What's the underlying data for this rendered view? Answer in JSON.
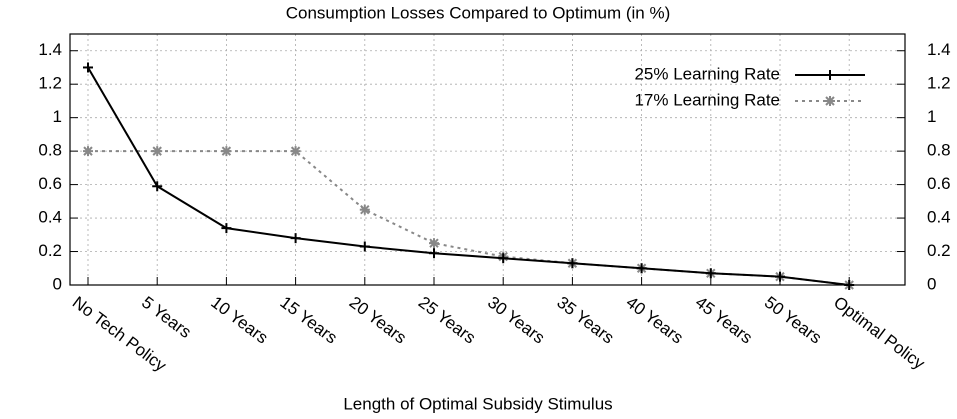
{
  "chart_data": {
    "type": "line",
    "title": "Consumption Losses Compared to Optimum (in %)",
    "x_label": "Length of Optimal Subsidy Stimulus",
    "categories": [
      "No Tech Policy",
      "5 Years",
      "10 Years",
      "15 Years",
      "20 Years",
      "25 Years",
      "30 Years",
      "35 Years",
      "40 Years",
      "45 Years",
      "50 Years",
      "Optimal Policy"
    ],
    "series": [
      {
        "name": "25% Learning Rate",
        "color": "#000000",
        "marker": "plus",
        "dash": "solid",
        "values": [
          1.3,
          0.59,
          0.34,
          0.28,
          0.23,
          0.19,
          0.16,
          0.13,
          0.1,
          0.07,
          0.05,
          0.0
        ]
      },
      {
        "name": "17% Learning Rate",
        "color": "#888888",
        "marker": "asterisk",
        "dash": "dotted",
        "values": [
          0.8,
          0.8,
          0.8,
          0.8,
          0.45,
          0.25,
          0.17,
          0.13,
          0.1,
          0.07,
          0.05,
          0.0
        ]
      }
    ],
    "ylim": [
      0,
      1.5
    ],
    "yticks": [
      0,
      0.2,
      0.4,
      0.6,
      0.8,
      1,
      1.2,
      1.4
    ],
    "grid": true,
    "legend": "upper right"
  }
}
